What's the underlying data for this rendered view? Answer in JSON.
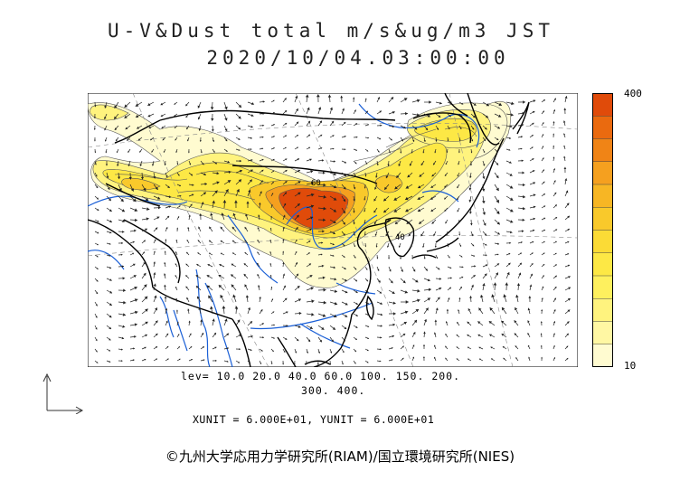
{
  "title": {
    "line1": "U-V&Dust total m/s&ug/m3 JST",
    "line2": "2020/10/04.03:00:00"
  },
  "colorbar": {
    "max_label": "400",
    "min_label": "10",
    "colors": [
      "#e04b0a",
      "#ea6a0f",
      "#f08416",
      "#f5a01f",
      "#f7b624",
      "#f9c92b",
      "#fbdb36",
      "#fde845",
      "#fef05e",
      "#fff37e",
      "#fff7a3",
      "#fffbd0"
    ]
  },
  "contour_levels": {
    "line1": "lev= 10.0 20.0 40.0 60.0 100. 150. 200.",
    "line2": "300. 400."
  },
  "units": "XUNIT = 6.000E+01, YUNIT = 6.000E+01",
  "credit": "©九州大学応用力学研究所(RIAM)/国立環境研究所(NIES)",
  "map": {
    "dust_colors": {
      "l10": "#fffbd0",
      "l20": "#fff37e",
      "l40": "#fde845",
      "l100": "#f9c92b",
      "l150": "#f5a01f",
      "l300": "#e04b0a"
    },
    "coast_color": "#000000",
    "river_color": "#1a5fd6",
    "label_x60": "60",
    "label_x40": "40"
  }
}
